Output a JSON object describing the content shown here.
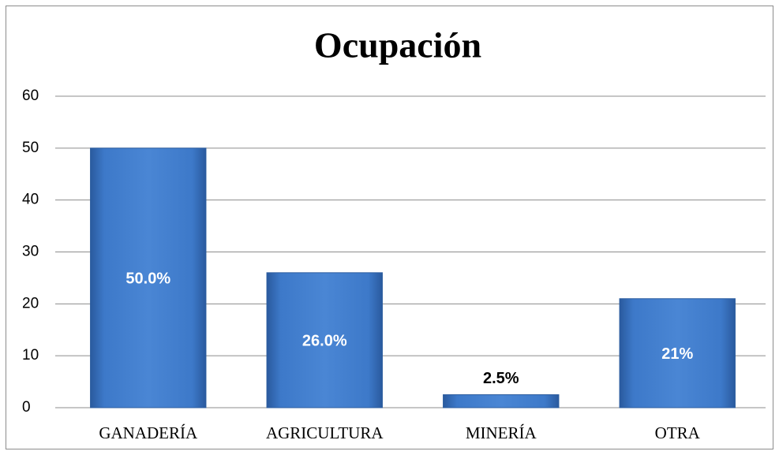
{
  "chart_data": {
    "type": "bar",
    "title": "Ocupación",
    "categories": [
      "GANADERÍA",
      "AGRICULTURA",
      "MINERÍA",
      "OTRA"
    ],
    "values": [
      50,
      26,
      2.5,
      21
    ],
    "value_labels": [
      "50.0%",
      "26.0%",
      "2.5%",
      "21%"
    ],
    "color": "#3a74c4",
    "ylim": [
      0,
      60
    ],
    "yticks": [
      0,
      10,
      20,
      30,
      40,
      50,
      60
    ],
    "grid": true
  }
}
